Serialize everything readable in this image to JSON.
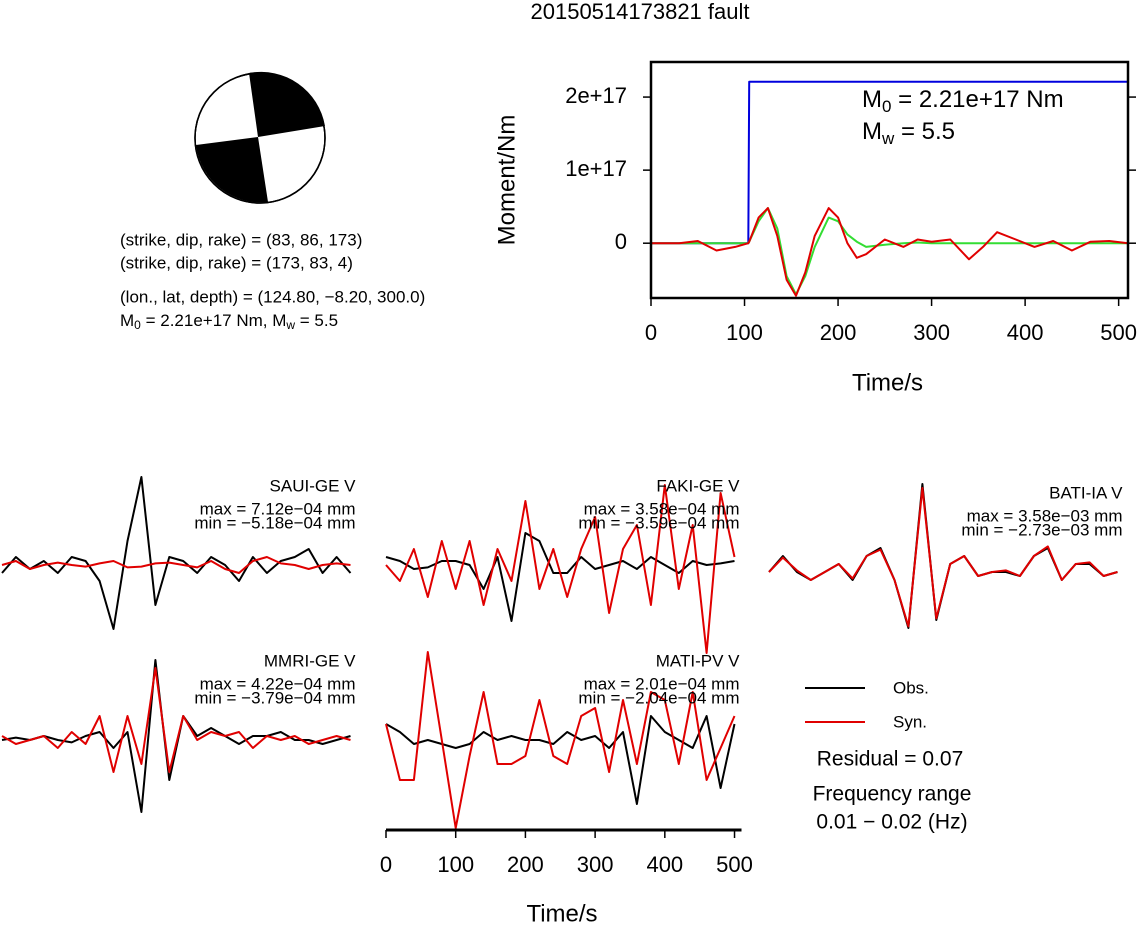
{
  "title": "20150514173821 fault",
  "mechanism": [
    "(strike, dip, rake) = (83, 86, 173)",
    "(strike, dip, rake) = (173, 83, 4)",
    "(lon., lat, depth) = (124.80, −8.20, 300.0)"
  ],
  "moment_line": [
    "M",
    "0",
    " = 2.21e+17 Nm, M",
    "w",
    " = 5.5"
  ],
  "legend": [
    {
      "name": "Obs.",
      "color": "#000000"
    },
    {
      "name": "Syn.",
      "color": "#e00000"
    }
  ],
  "residual": "Residual = 0.07",
  "frequency": [
    "Frequency range",
    "0.01 − 0.02 (Hz)"
  ],
  "chart_data": [
    {
      "type": "line",
      "xlabel": "Time/s",
      "ylabel": "Moment/Nm",
      "annotations": [
        [
          "M",
          "0",
          " = 2.21e+17 Nm"
        ],
        [
          "M",
          "w",
          " = 5.5"
        ]
      ],
      "xlim": [
        0,
        510
      ],
      "xticks": [
        0,
        100,
        200,
        300,
        400,
        500
      ],
      "ylim": [
        -7.5e+16,
        2.48e+17
      ],
      "yticks": [
        {
          "value": 0,
          "label": "0"
        },
        {
          "value": 1e+17,
          "label": "1e+17"
        },
        {
          "value": 2e+17,
          "label": "2e+17"
        }
      ],
      "x": [
        0,
        30,
        50,
        70,
        90,
        104,
        105,
        115,
        125,
        135,
        145,
        155,
        165,
        175,
        190,
        200,
        210,
        220,
        230,
        250,
        270,
        285,
        300,
        320,
        340,
        355,
        370,
        390,
        410,
        430,
        450,
        470,
        490,
        510
      ],
      "series": [
        {
          "color": "#0000dd",
          "values": [
            0,
            0,
            0,
            0,
            0,
            0,
            2.21e+17,
            2.21e+17,
            2.21e+17,
            2.21e+17,
            2.21e+17,
            2.21e+17,
            2.21e+17,
            2.21e+17,
            2.21e+17,
            2.21e+17,
            2.21e+17,
            2.21e+17,
            2.21e+17,
            2.21e+17,
            2.21e+17,
            2.21e+17,
            2.21e+17,
            2.21e+17,
            2.21e+17,
            2.21e+17,
            2.21e+17,
            2.21e+17,
            2.21e+17,
            2.21e+17,
            2.21e+17,
            2.21e+17,
            2.21e+17,
            2.21e+17
          ]
        },
        {
          "color": "#33dd33",
          "values": [
            0,
            0,
            0,
            0,
            0,
            0,
            2000000000000000.0,
            3e+16,
            4.8e+16,
            2e+16,
            -4.5e+16,
            -7e+16,
            -4.5e+16,
            -5000000000000000.0,
            3.5e+16,
            3e+16,
            1.2e+16,
            2000000000000000.0,
            -5000000000000000.0,
            -2000000000000000.0,
            0,
            1000000000000000.0,
            0,
            0,
            0,
            0,
            0,
            0,
            0,
            0,
            0,
            0,
            0,
            0
          ]
        },
        {
          "color": "#e00000",
          "values": [
            0,
            0,
            3000000000000000.0,
            -1e+16,
            -5000000000000000.0,
            0,
            2000000000000000.0,
            3.5e+16,
            4.8e+16,
            1e+16,
            -5e+16,
            -7.2e+16,
            -4e+16,
            1e+16,
            4.8e+16,
            3.5e+16,
            0,
            -2e+16,
            -1.5e+16,
            5000000000000000.0,
            -5000000000000000.0,
            5000000000000000.0,
            2000000000000000.0,
            5000000000000000.0,
            -2.2e+16,
            -5000000000000000.0,
            1.5e+16,
            5000000000000000.0,
            -5000000000000000.0,
            3000000000000000.0,
            -1e+16,
            2000000000000000.0,
            3000000000000000.0,
            0
          ]
        }
      ]
    },
    {
      "type": "wave",
      "labels": [
        "SAUI-GE V",
        "max = 7.12e−04 mm",
        "min = −5.18e−04 mm"
      ],
      "xlim": [
        0,
        510
      ],
      "ylim": [
        -1,
        1
      ],
      "x": [
        0,
        20,
        40,
        60,
        80,
        100,
        120,
        140,
        160,
        180,
        200,
        220,
        240,
        260,
        280,
        300,
        320,
        340,
        360,
        380,
        400,
        420,
        440,
        460,
        480,
        500
      ],
      "series": [
        {
          "color": "#000000",
          "values": [
            -0.1,
            0.1,
            -0.05,
            0.05,
            -0.1,
            0.1,
            0.05,
            -0.2,
            -0.8,
            0.3,
            1.1,
            -0.5,
            0.1,
            0.05,
            -0.1,
            0.1,
            0,
            -0.2,
            0.1,
            -0.1,
            0.05,
            0.1,
            0.2,
            -0.1,
            0.1,
            -0.1
          ]
        },
        {
          "color": "#e00000",
          "values": [
            0,
            0.05,
            -0.05,
            0,
            0.03,
            0,
            -0.02,
            0.02,
            0.05,
            -0.03,
            -0.02,
            0.02,
            0.03,
            0,
            -0.03,
            0.05,
            -0.05,
            -0.1,
            0.05,
            0.1,
            0.02,
            0,
            -0.05,
            0,
            0.02,
            0
          ]
        }
      ]
    },
    {
      "type": "wave",
      "labels": [
        "FAKI-GE V",
        "max = 3.58e−04 mm",
        "min = −3.59e−04 mm"
      ],
      "xlim": [
        0,
        510
      ],
      "ylim": [
        -1,
        1
      ],
      "x": [
        0,
        20,
        40,
        60,
        80,
        100,
        120,
        140,
        160,
        180,
        200,
        220,
        240,
        260,
        280,
        300,
        320,
        340,
        360,
        380,
        400,
        420,
        440,
        460,
        480,
        500
      ],
      "series": [
        {
          "color": "#000000",
          "values": [
            0.1,
            0.05,
            -0.05,
            -0.03,
            0.05,
            0.05,
            0,
            -0.3,
            0.1,
            -0.7,
            0.4,
            0.3,
            -0.1,
            -0.1,
            0.1,
            -0.05,
            0,
            0.05,
            -0.05,
            0.1,
            0,
            -0.1,
            0.05,
            0,
            0.02,
            0.05
          ]
        },
        {
          "color": "#e00000",
          "values": [
            0,
            -0.2,
            0.2,
            -0.4,
            0.3,
            -0.3,
            0.3,
            -0.5,
            0.2,
            -0.2,
            0.8,
            -0.3,
            0.2,
            -0.4,
            0.2,
            0.6,
            -0.6,
            0.2,
            0.5,
            -0.5,
            1.0,
            -0.3,
            0.5,
            -1.1,
            0.9,
            0.1
          ]
        }
      ]
    },
    {
      "type": "wave",
      "labels": [
        "BATI-IA V",
        "max = 3.58e−03 mm",
        "min = −2.73e−03 mm"
      ],
      "xlim": [
        0,
        510
      ],
      "ylim": [
        -1,
        1
      ],
      "x": [
        0,
        20,
        40,
        60,
        80,
        100,
        120,
        140,
        160,
        180,
        200,
        220,
        240,
        260,
        280,
        300,
        320,
        340,
        360,
        380,
        400,
        420,
        440,
        460,
        480,
        500
      ],
      "series": [
        {
          "color": "#000000",
          "values": [
            0,
            0.2,
            0,
            -0.1,
            0,
            0.1,
            -0.1,
            0.2,
            0.3,
            -0.1,
            -0.7,
            1.1,
            -0.6,
            0.1,
            0.2,
            -0.05,
            0,
            0,
            -0.05,
            0.2,
            0.3,
            -0.1,
            0.1,
            0.1,
            -0.05,
            0
          ]
        },
        {
          "color": "#e00000",
          "values": [
            0,
            0.18,
            0.02,
            -0.1,
            0,
            0.1,
            -0.08,
            0.2,
            0.28,
            -0.1,
            -0.68,
            1.05,
            -0.58,
            0.1,
            0.2,
            -0.05,
            0,
            0.02,
            -0.05,
            0.2,
            0.32,
            -0.1,
            0.1,
            0.12,
            -0.05,
            0
          ]
        }
      ]
    },
    {
      "type": "wave",
      "labels": [
        "MMRI-GE V",
        "max = 4.22e−04 mm",
        "min = −3.79e−04 mm"
      ],
      "xlim": [
        0,
        510
      ],
      "ylim": [
        -1,
        1
      ],
      "x": [
        0,
        20,
        40,
        60,
        80,
        100,
        120,
        140,
        160,
        180,
        200,
        220,
        240,
        260,
        280,
        300,
        320,
        340,
        360,
        380,
        400,
        420,
        440,
        460,
        480,
        500
      ],
      "series": [
        {
          "color": "#000000",
          "values": [
            0,
            0.03,
            0,
            0.05,
            0,
            -0.03,
            0.05,
            0.1,
            -0.1,
            0.1,
            -0.9,
            1.0,
            -0.5,
            0.3,
            0.05,
            0.15,
            0.05,
            -0.05,
            0.05,
            0.05,
            0.1,
            0,
            0,
            -0.05,
            0,
            0.05
          ]
        },
        {
          "color": "#e00000",
          "values": [
            0.05,
            -0.05,
            0,
            0.05,
            -0.1,
            0.1,
            -0.05,
            0.3,
            -0.4,
            0.3,
            -0.3,
            0.9,
            -0.4,
            0.3,
            0,
            0.1,
            0.05,
            0.1,
            -0.1,
            0.05,
            0,
            0.05,
            -0.05,
            0,
            0.05,
            0
          ]
        }
      ]
    },
    {
      "type": "wave",
      "labels": [
        "MATI-PV V",
        "max = 2.01e−04 mm",
        "min = −2.04e−04 mm"
      ],
      "xlim": [
        0,
        510
      ],
      "ylim": [
        -1,
        1
      ],
      "xticks": [
        0,
        100,
        200,
        300,
        400,
        500
      ],
      "xlabel": "Time/s",
      "x": [
        0,
        20,
        40,
        60,
        80,
        100,
        120,
        140,
        160,
        180,
        200,
        220,
        240,
        260,
        280,
        300,
        320,
        340,
        360,
        380,
        400,
        420,
        440,
        460,
        480,
        500
      ],
      "series": [
        {
          "color": "#000000",
          "values": [
            0.2,
            0.1,
            -0.05,
            0,
            -0.05,
            -0.1,
            -0.05,
            0.1,
            0,
            0.05,
            0,
            0,
            -0.05,
            0.1,
            0,
            0.05,
            -0.1,
            0.1,
            -0.8,
            0.3,
            0.1,
            0,
            -0.1,
            0.3,
            -0.6,
            0.2
          ]
        },
        {
          "color": "#e00000",
          "values": [
            0.2,
            -0.5,
            -0.5,
            1.1,
            0,
            -1.1,
            -0.2,
            0.6,
            -0.3,
            -0.3,
            -0.2,
            0.5,
            -0.2,
            -0.3,
            0.3,
            0.4,
            -0.4,
            0.5,
            -0.3,
            0.6,
            0.5,
            -0.3,
            0.6,
            -0.5,
            -0.1,
            0.3
          ]
        }
      ]
    }
  ]
}
